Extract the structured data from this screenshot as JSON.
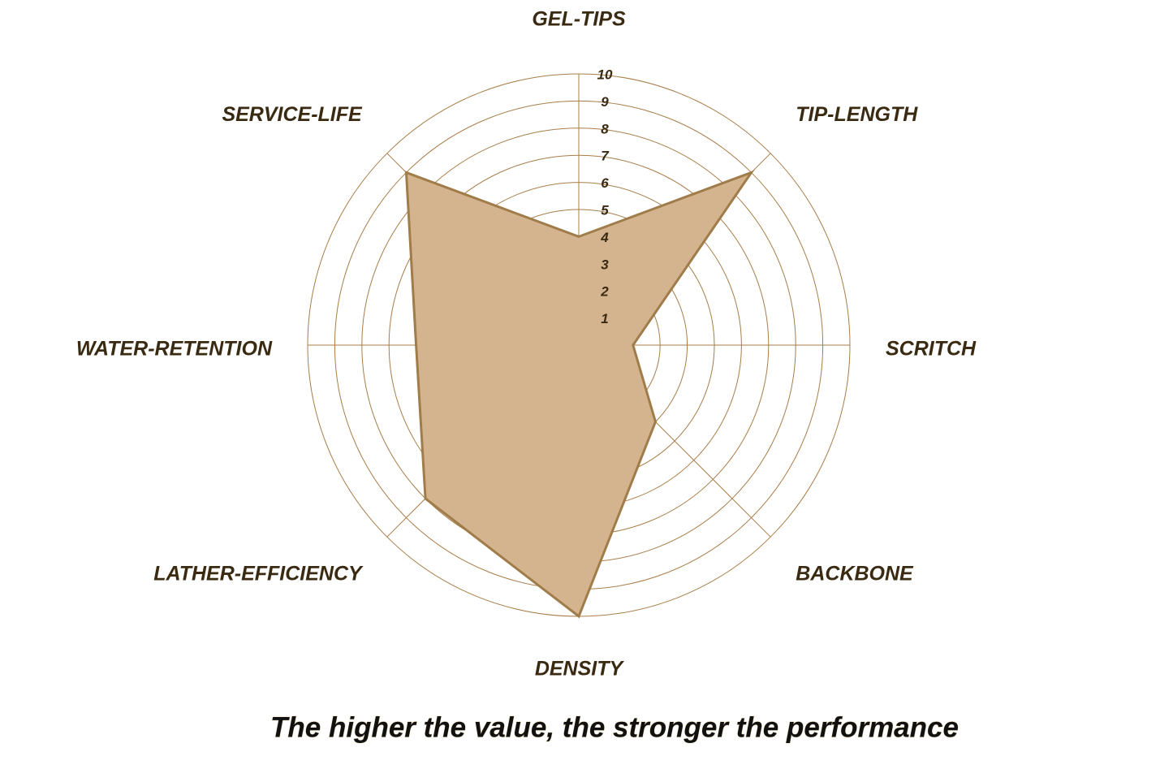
{
  "chart_data": {
    "type": "radar",
    "title": "The higher the value, the stronger the performance",
    "categories": [
      "GEL-TIPS",
      "TIP-LENGTH",
      "SCRITCH",
      "BACKBONE",
      "DENSITY",
      "LATHER-EFFICIENCY",
      "WATER-RETENTION",
      "SERVICE-LIFE"
    ],
    "values": [
      4,
      9,
      2,
      4,
      10,
      8,
      6,
      9
    ],
    "color": "#d4b48e",
    "line_color": "#a07c4a",
    "grid_color": "#a87d4a",
    "rlim": [
      0,
      10
    ],
    "rticks": [
      1,
      2,
      3,
      4,
      5,
      6,
      7,
      8,
      9,
      10
    ],
    "grid": true
  }
}
